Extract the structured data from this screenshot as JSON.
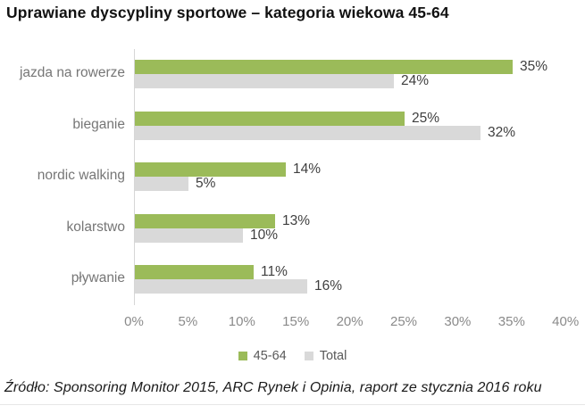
{
  "title": "Uprawiane dyscypliny sportowe – kategoria wiekowa 45-64",
  "source": "Źródło: Sponsoring Monitor 2015, ARC Rynek i Opinia, raport ze stycznia 2016 roku",
  "colors": {
    "series_45_64": "#9bbb59",
    "series_total": "#d9d9d9",
    "axis_line": "#d6d6d6",
    "category_label_text": "#767676",
    "value_label_text": "#3f3f3f",
    "tick_label_text": "#8a8a8a",
    "legend_text": "#595959"
  },
  "chart_data": {
    "type": "bar",
    "orientation": "horizontal",
    "title": "Uprawiane dyscypliny sportowe – kategoria wiekowa 45-64",
    "categories": [
      "jazda na rowerze",
      "bieganie",
      "nordic walking",
      "kolarstwo",
      "pływanie"
    ],
    "series": [
      {
        "name": "45-64",
        "color": "#9bbb59",
        "values": [
          35,
          25,
          14,
          13,
          11
        ]
      },
      {
        "name": "Total",
        "color": "#d9d9d9",
        "values": [
          24,
          32,
          5,
          10,
          16
        ]
      }
    ],
    "value_label_suffix": "%",
    "x_ticks": [
      "0%",
      "5%",
      "10%",
      "15%",
      "20%",
      "25%",
      "30%",
      "35%",
      "40%"
    ],
    "xlim": [
      0,
      40
    ],
    "grid": false,
    "legend_position": "bottom-center",
    "legend_labels": [
      "45-64",
      "Total"
    ]
  }
}
